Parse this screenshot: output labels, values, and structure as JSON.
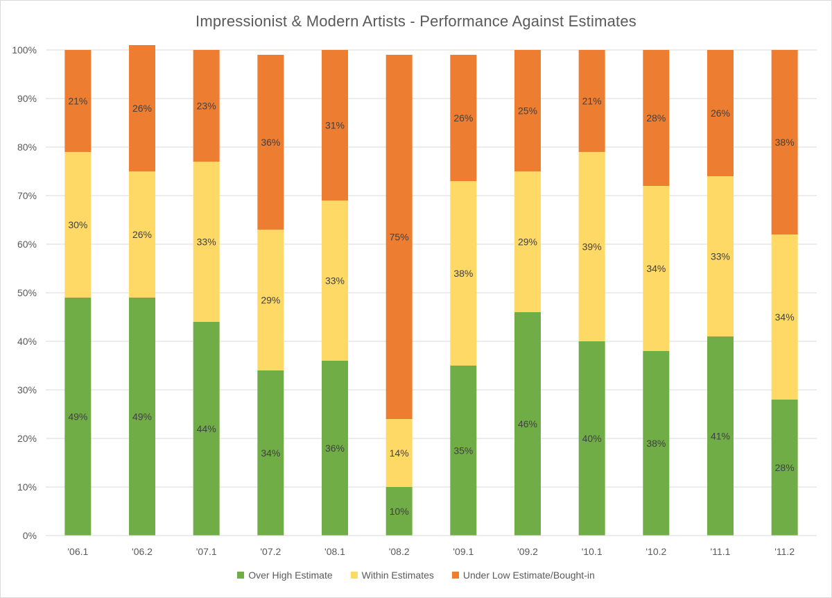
{
  "chart_data": {
    "type": "bar",
    "stacked": true,
    "percent_stacked": true,
    "title": "Impressionist & Modern Artists - Performance Against Estimates",
    "categories": [
      "'06.1",
      "'06.2",
      "'07.1",
      "'07.2",
      "'08.1",
      "'08.2",
      "'09.1",
      "'09.2",
      "'10.1",
      "'10.2",
      "'11.1",
      "'11.2"
    ],
    "series": [
      {
        "name": "Over High Estimate",
        "color": "#70ad47",
        "values": [
          49,
          49,
          44,
          34,
          36,
          10,
          35,
          46,
          40,
          38,
          41,
          28
        ],
        "labels": [
          "49%",
          "49%",
          "44%",
          "34%",
          "36%",
          "10%",
          "35%",
          "46%",
          "40%",
          "38%",
          "41%",
          "28%"
        ]
      },
      {
        "name": "Within Estimates",
        "color": "#ffd966",
        "values": [
          30,
          26,
          33,
          29,
          33,
          14,
          38,
          29,
          39,
          34,
          33,
          34
        ],
        "labels": [
          "30%",
          "26%",
          "33%",
          "29%",
          "33%",
          "14%",
          "38%",
          "29%",
          "39%",
          "34%",
          "33%",
          "34%"
        ]
      },
      {
        "name": "Under Low Estimate/Bought-in",
        "color": "#ed7d31",
        "values": [
          21,
          26,
          23,
          36,
          31,
          75,
          26,
          25,
          21,
          28,
          26,
          38
        ],
        "labels": [
          "21%",
          "26%",
          "23%",
          "36%",
          "31%",
          "75%",
          "26%",
          "25%",
          "21%",
          "28%",
          "26%",
          "38%"
        ]
      }
    ],
    "y_ticks": [
      "0%",
      "10%",
      "20%",
      "30%",
      "40%",
      "50%",
      "60%",
      "70%",
      "80%",
      "90%",
      "100%"
    ],
    "ylim": [
      0,
      100
    ],
    "grid": true,
    "legend_position": "bottom"
  }
}
